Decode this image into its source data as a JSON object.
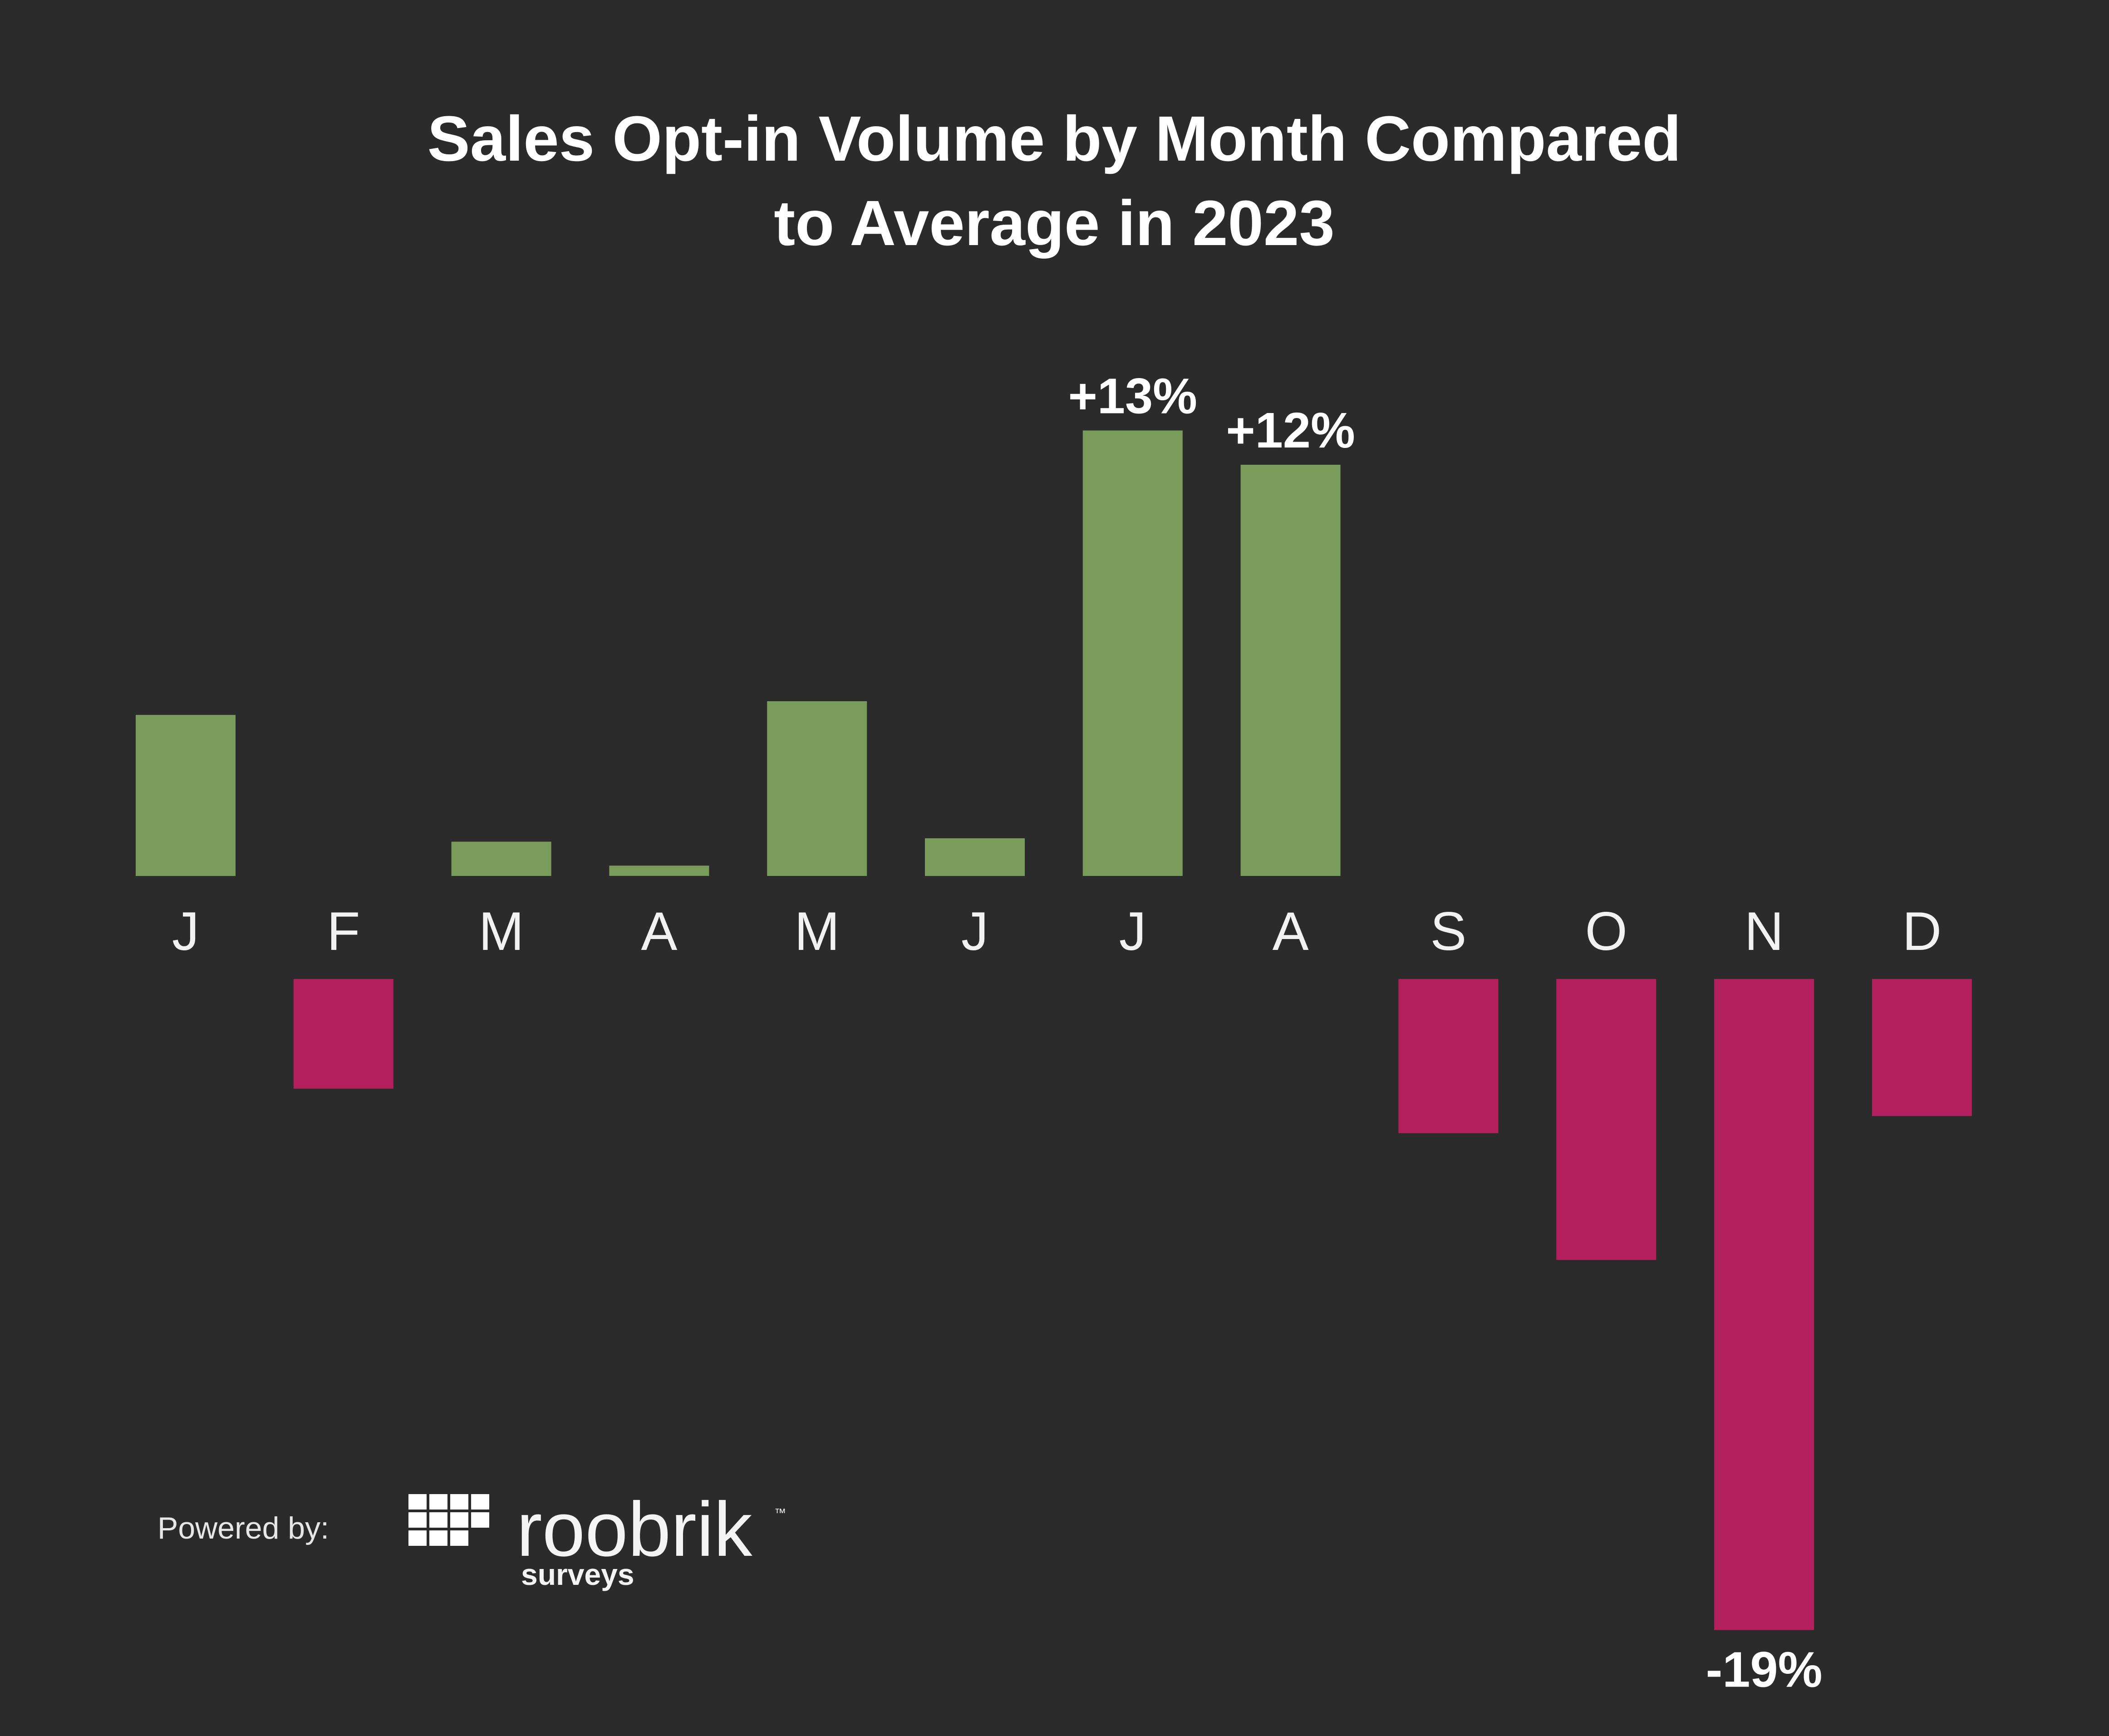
{
  "colors": {
    "background": "#2b2b2b",
    "positive": "#7a9c5a",
    "negative": "#b41f5d"
  },
  "chart_data": {
    "type": "bar",
    "title": [
      "Sales Opt-in Volume by Month Compared",
      "to Average in 2023"
    ],
    "categories": [
      "J",
      "F",
      "M",
      "A",
      "M",
      "J",
      "J",
      "A",
      "S",
      "O",
      "N",
      "D"
    ],
    "values": [
      4.7,
      -3.2,
      1.0,
      0.3,
      5.1,
      1.1,
      13,
      12,
      -4.5,
      -8.2,
      -19,
      -4.0
    ],
    "unit": "%",
    "baseline": 0,
    "ylim": [
      -19,
      13
    ],
    "data_labels": [
      {
        "index": 6,
        "text": "+13%"
      },
      {
        "index": 7,
        "text": "+12%"
      },
      {
        "index": 10,
        "text": "-19%"
      }
    ]
  },
  "branding": {
    "powered_label": "Powered by:",
    "logo_text": "roobrik",
    "logo_subtext": "surveys",
    "logo_tm": "™",
    "logo_icon": "grid-logo-icon"
  }
}
